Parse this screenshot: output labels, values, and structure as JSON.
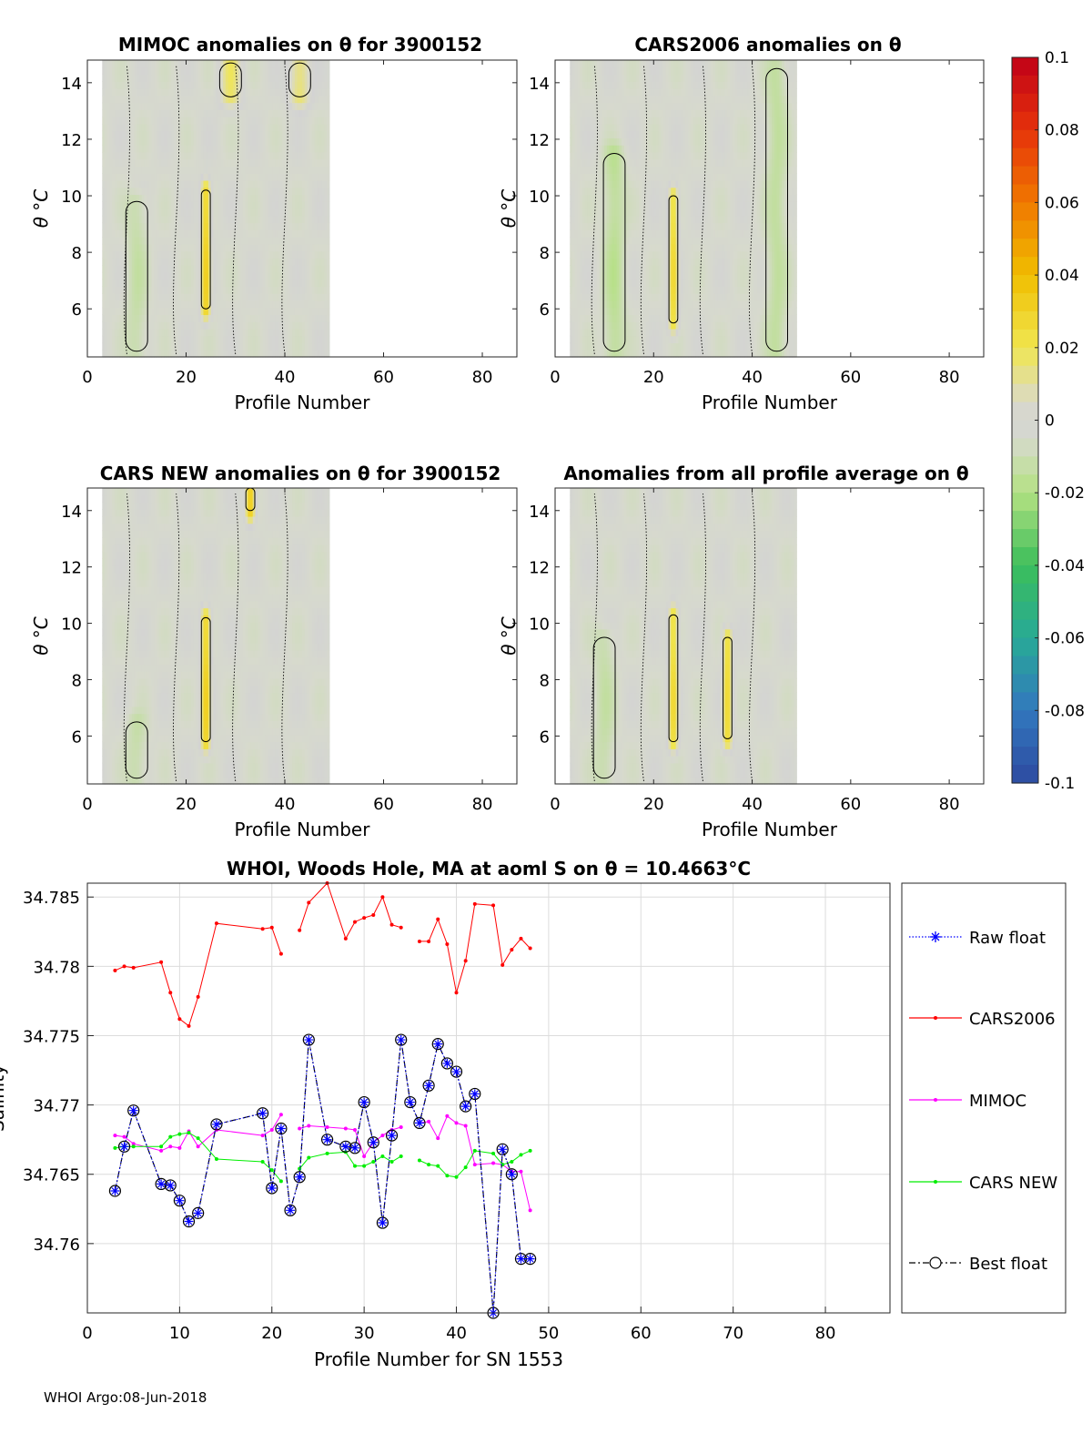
{
  "figure": {
    "footer": "WHOI Argo:08-Jun-2018"
  },
  "chart_data": [
    {
      "type": "heatmap",
      "title": "MIMOC anomalies on θ  for 3900152",
      "xlabel": "Profile Number",
      "ylabel": "θ °C",
      "xlim": [
        0,
        87
      ],
      "ylim": [
        4.3,
        14.8
      ],
      "xticks": [
        "0",
        "20",
        "40",
        "60",
        "80"
      ],
      "yticks": [
        "6",
        "8",
        "10",
        "12",
        "14"
      ],
      "data_extent_x": [
        3,
        49
      ],
      "anomaly_features": [
        {
          "x": 24,
          "y": [
            6.0,
            10.2
          ],
          "value": 0.035
        },
        {
          "x": 10,
          "y": [
            4.5,
            9.8
          ],
          "value": -0.008
        },
        {
          "x": 29,
          "y": [
            13.5,
            14.7
          ],
          "value": 0.02
        },
        {
          "x": 43,
          "y": [
            13.5,
            14.7
          ],
          "value": 0.02
        }
      ]
    },
    {
      "type": "heatmap",
      "title": "CARS2006 anomalies on θ",
      "xlabel": "Profile Number",
      "ylabel": "θ °C",
      "xlim": [
        0,
        87
      ],
      "ylim": [
        4.3,
        14.8
      ],
      "xticks": [
        "0",
        "20",
        "40",
        "60",
        "80"
      ],
      "yticks": [
        "6",
        "8",
        "10",
        "12",
        "14"
      ],
      "data_extent_x": [
        3,
        49
      ],
      "anomaly_features": [
        {
          "x": 24,
          "y": [
            5.5,
            10.0
          ],
          "value": 0.03
        },
        {
          "x": 12,
          "y": [
            4.5,
            11.5
          ],
          "value": -0.012
        },
        {
          "x": 45,
          "y": [
            4.5,
            14.5
          ],
          "value": -0.01
        }
      ]
    },
    {
      "type": "heatmap",
      "title": "CARS NEW anomalies on θ for 3900152",
      "xlabel": "Profile Number",
      "ylabel": "θ °C",
      "xlim": [
        0,
        87
      ],
      "ylim": [
        4.3,
        14.8
      ],
      "xticks": [
        "0",
        "20",
        "40",
        "60",
        "80"
      ],
      "yticks": [
        "6",
        "8",
        "10",
        "12",
        "14"
      ],
      "data_extent_x": [
        3,
        49
      ],
      "anomaly_features": [
        {
          "x": 24,
          "y": [
            5.8,
            10.2
          ],
          "value": 0.035
        },
        {
          "x": 33,
          "y": [
            14.0,
            14.8
          ],
          "value": 0.04
        },
        {
          "x": 10,
          "y": [
            4.5,
            6.5
          ],
          "value": -0.008
        }
      ]
    },
    {
      "type": "heatmap",
      "title": "Anomalies from all profile average on θ",
      "xlabel": "Profile Number",
      "ylabel": "θ °C",
      "xlim": [
        0,
        87
      ],
      "ylim": [
        4.3,
        14.8
      ],
      "xticks": [
        "0",
        "20",
        "40",
        "60",
        "80"
      ],
      "yticks": [
        "6",
        "8",
        "10",
        "12",
        "14"
      ],
      "data_extent_x": [
        3,
        49
      ],
      "anomaly_features": [
        {
          "x": 24,
          "y": [
            5.8,
            10.3
          ],
          "value": 0.03
        },
        {
          "x": 35,
          "y": [
            5.9,
            9.5
          ],
          "value": 0.03
        },
        {
          "x": 10,
          "y": [
            4.5,
            9.5
          ],
          "value": -0.008
        }
      ]
    },
    {
      "type": "colorbar",
      "ylim": [
        -0.1,
        0.1
      ],
      "ticks": [
        "0.1",
        "0.08",
        "0.06",
        "0.04",
        "0.02",
        "0",
        "-0.02",
        "-0.04",
        "-0.06",
        "-0.08",
        "-0.1"
      ],
      "colors": {
        "low": "#2d4aa0",
        "mid": "#d3d3d3",
        "high": "#c00018"
      }
    },
    {
      "type": "line",
      "title": "WHOI, Woods Hole, MA at aoml S on θ = 10.4663°C",
      "xlabel": "Profile Number for SN 1553",
      "ylabel": "Salinity",
      "xlim": [
        0,
        87
      ],
      "ylim": [
        34.755,
        34.786
      ],
      "xticks": [
        "0",
        "10",
        "20",
        "30",
        "40",
        "50",
        "60",
        "70",
        "80"
      ],
      "yticks": [
        "34.76",
        "34.765",
        "34.77",
        "34.775",
        "34.78",
        "34.785"
      ],
      "grid": true,
      "legend_position": "right",
      "series": [
        {
          "name": "Raw float",
          "color": "#0000ff",
          "marker": "asterisk",
          "x": [
            3,
            4,
            5,
            8,
            9,
            10,
            11,
            12,
            14,
            19,
            20,
            21,
            22,
            23,
            24,
            26,
            28,
            29,
            30,
            31,
            32,
            33,
            34,
            35,
            36,
            37,
            38,
            39,
            40,
            41,
            42,
            44,
            45,
            46,
            47,
            48
          ],
          "y": [
            34.7638,
            34.767,
            34.7696,
            34.7643,
            34.7642,
            34.7631,
            34.7616,
            34.7622,
            34.7686,
            34.7694,
            34.764,
            34.7683,
            34.7624,
            34.7648,
            34.7747,
            34.7675,
            34.767,
            34.7669,
            34.7702,
            34.7673,
            34.7615,
            34.7678,
            34.7747,
            34.7702,
            34.7687,
            34.7714,
            34.7744,
            34.773,
            34.7724,
            34.7699,
            34.7708,
            34.755,
            34.7668,
            34.765,
            34.7589,
            34.7589
          ]
        },
        {
          "name": "CARS2006",
          "color": "#ff0000",
          "marker": "dot",
          "x": [
            3,
            4,
            5,
            8,
            9,
            10,
            11,
            12,
            14,
            19,
            20,
            21,
            22,
            23,
            24,
            26,
            28,
            29,
            30,
            31,
            32,
            33,
            34,
            35,
            36,
            37,
            38,
            39,
            40,
            41,
            42,
            44,
            45,
            46,
            47,
            48
          ],
          "y": [
            34.7797,
            34.78,
            34.7799,
            34.7803,
            34.7781,
            34.7762,
            34.7757,
            34.7778,
            34.7831,
            34.7827,
            34.7828,
            34.7809,
            null,
            34.7826,
            34.7846,
            34.786,
            34.782,
            34.7832,
            34.7835,
            34.7837,
            34.785,
            34.783,
            34.7828,
            null,
            34.7818,
            34.7818,
            34.7834,
            34.7816,
            34.7781,
            34.7804,
            34.7845,
            34.7844,
            34.7801,
            34.7812,
            34.782,
            34.7813
          ]
        },
        {
          "name": "MIMOC",
          "color": "#ff00ff",
          "marker": "dot",
          "x": [
            3,
            4,
            5,
            8,
            9,
            10,
            11,
            12,
            14,
            19,
            20,
            21,
            22,
            23,
            24,
            26,
            28,
            29,
            30,
            31,
            32,
            33,
            34,
            35,
            36,
            37,
            38,
            39,
            40,
            41,
            42,
            44,
            45,
            46,
            47,
            48
          ],
          "y": [
            34.7678,
            34.7677,
            34.7672,
            34.7667,
            34.767,
            34.7669,
            34.7681,
            34.767,
            34.7682,
            34.7678,
            34.7682,
            34.7693,
            null,
            34.7683,
            34.7685,
            34.7684,
            34.7683,
            34.7682,
            34.7663,
            34.7673,
            34.7678,
            34.7682,
            34.7684,
            null,
            34.7687,
            34.7688,
            34.7676,
            34.7692,
            34.7687,
            34.7685,
            34.7657,
            34.7658,
            34.7657,
            34.7652,
            34.7652,
            34.7624
          ]
        },
        {
          "name": "CARS NEW",
          "color": "#00ee00",
          "marker": "dot",
          "x": [
            3,
            4,
            5,
            8,
            9,
            10,
            11,
            12,
            14,
            19,
            20,
            21,
            22,
            23,
            24,
            26,
            28,
            29,
            30,
            31,
            32,
            33,
            34,
            35,
            36,
            37,
            38,
            39,
            40,
            41,
            42,
            44,
            45,
            46,
            47,
            48
          ],
          "y": [
            34.7669,
            34.767,
            34.767,
            34.767,
            34.7677,
            34.7679,
            34.768,
            34.7676,
            34.7661,
            34.7659,
            34.7653,
            34.7645,
            null,
            34.7654,
            34.7662,
            34.7665,
            34.7666,
            34.7656,
            34.7656,
            34.7659,
            34.7663,
            34.7659,
            34.7663,
            null,
            34.766,
            34.7657,
            34.7656,
            34.7649,
            34.7648,
            34.7655,
            34.7667,
            34.7665,
            34.7657,
            34.7659,
            34.7664,
            34.7667
          ]
        },
        {
          "name": "Best float",
          "color": "#000000",
          "marker": "circle",
          "x": [
            3,
            4,
            5,
            8,
            9,
            10,
            11,
            12,
            14,
            19,
            20,
            21,
            22,
            23,
            24,
            26,
            28,
            29,
            30,
            31,
            32,
            33,
            34,
            35,
            36,
            37,
            38,
            39,
            40,
            41,
            42,
            44,
            45,
            46,
            47,
            48
          ],
          "y": [
            34.7638,
            34.767,
            34.7696,
            34.7643,
            34.7642,
            34.7631,
            34.7616,
            34.7622,
            34.7686,
            34.7694,
            34.764,
            34.7683,
            34.7624,
            34.7648,
            34.7747,
            34.7675,
            34.767,
            34.7669,
            34.7702,
            34.7673,
            34.7615,
            34.7678,
            34.7747,
            34.7702,
            34.7687,
            34.7714,
            34.7744,
            34.773,
            34.7724,
            34.7699,
            34.7708,
            34.755,
            34.7668,
            34.765,
            34.7589,
            34.7589
          ]
        }
      ]
    }
  ]
}
